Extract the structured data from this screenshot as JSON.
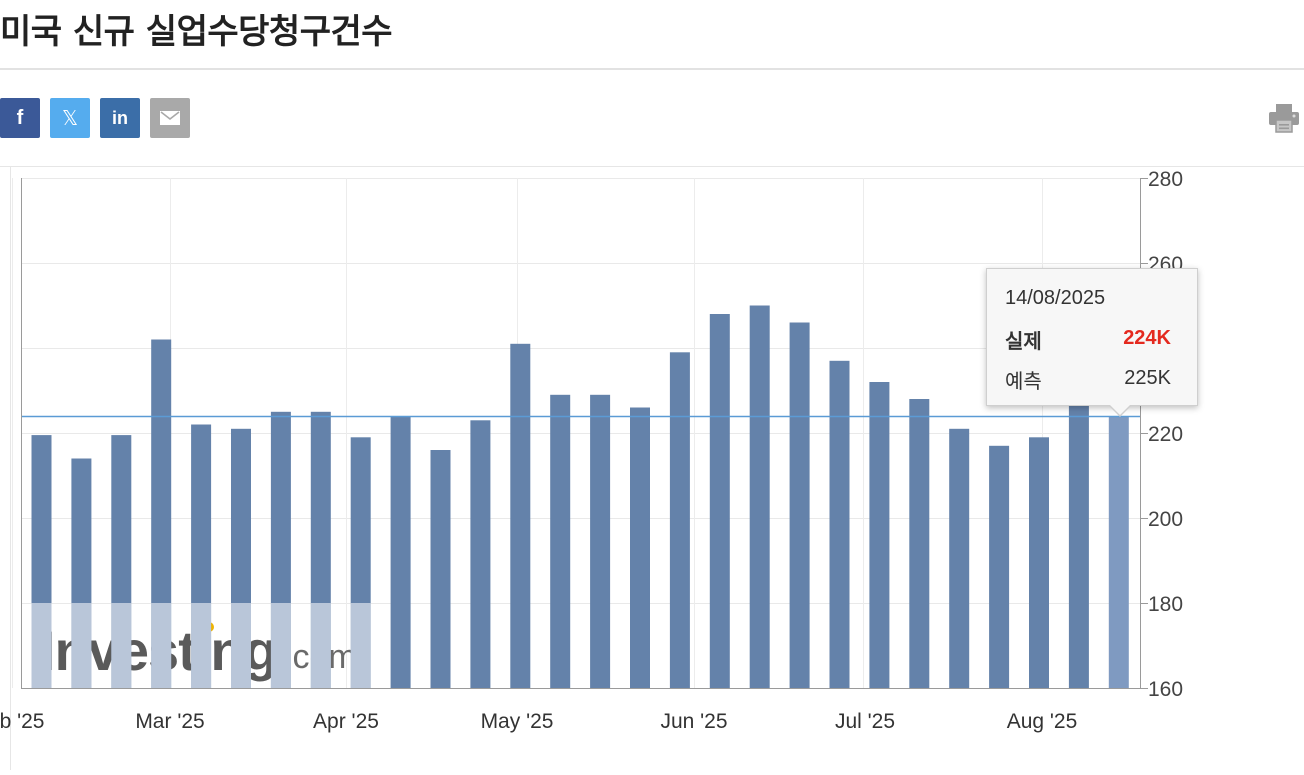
{
  "page": {
    "title": "미국 신규 실업수당청구건수"
  },
  "share": {
    "buttons": [
      {
        "name": "facebook",
        "glyph": "f",
        "color": "#3b5998"
      },
      {
        "name": "twitter-x",
        "glyph": "𝕏",
        "color": "#55acee"
      },
      {
        "name": "linkedin",
        "glyph": "in",
        "color": "#3b6ea8"
      },
      {
        "name": "email",
        "glyph": "",
        "color": "#a9a9a9"
      }
    ],
    "print_icon": "printer-icon"
  },
  "tooltip": {
    "date": "14/08/2025",
    "actual_label": "실제",
    "actual_value": "224K",
    "forecast_label": "예측",
    "forecast_value": "225K"
  },
  "watermark": {
    "brand": "Investing",
    "suffix": ".com"
  },
  "chart_data": {
    "type": "bar",
    "y_ticks": [
      280,
      260,
      240,
      220,
      200,
      180,
      160
    ],
    "ylim": [
      160,
      280
    ],
    "x_tick_labels": [
      "b '25",
      "Mar '25",
      "Apr '25",
      "May '25",
      "Jun '25",
      "Jul '25",
      "Aug '25"
    ],
    "values": [
      219.5,
      214,
      219.5,
      242,
      222,
      221,
      225,
      225,
      219,
      224,
      216,
      223,
      241,
      229,
      229,
      226,
      239,
      248,
      250,
      246,
      237,
      232,
      228,
      221,
      217,
      219,
      238,
      224
    ],
    "highlighted_index": 27,
    "forecast_line": 224,
    "grid": true,
    "bar_color": "#6482aa",
    "highlight_color": "#7f9ac1",
    "forecast_line_color": "#5b9bd5"
  }
}
